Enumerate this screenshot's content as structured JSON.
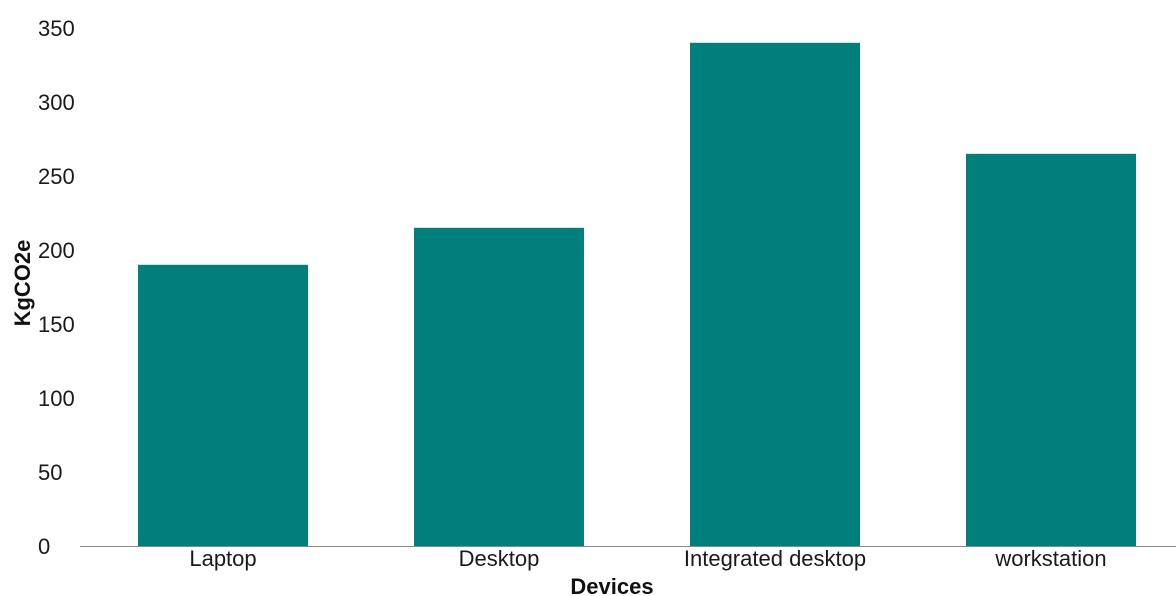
{
  "chart_data": {
    "type": "bar",
    "title": "",
    "xlabel": "Devices",
    "ylabel": "KgCO2e",
    "categories": [
      "Laptop",
      "Desktop",
      "Integrated desktop",
      "workstation"
    ],
    "values": [
      190,
      215,
      340,
      265
    ],
    "ylim": [
      0,
      350
    ],
    "yticks": [
      0,
      50,
      100,
      150,
      200,
      250,
      300,
      350
    ],
    "grid": false,
    "legend": "none",
    "bar_color": "#007f7c",
    "axis_color": "#888888"
  }
}
